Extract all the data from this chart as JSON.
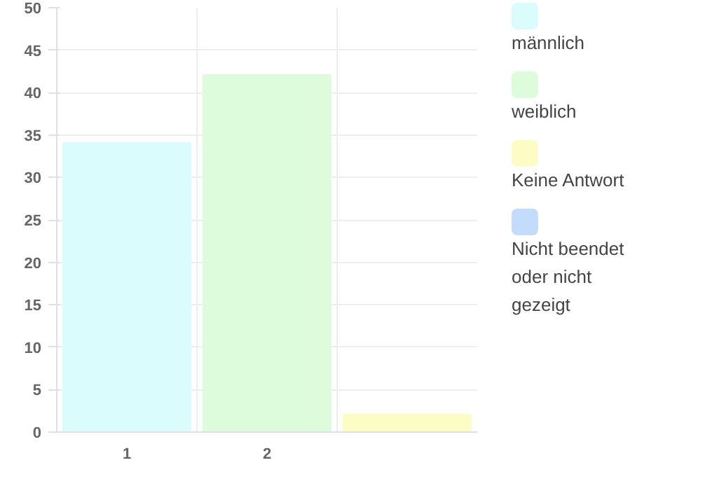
{
  "chart_data": {
    "type": "bar",
    "categories": [
      "1",
      "2",
      null
    ],
    "series": [
      {
        "name": "männlich",
        "color": "#dafcfc",
        "values": [
          34,
          null,
          null
        ]
      },
      {
        "name": "weiblich",
        "color": "#dcfcdc",
        "values": [
          null,
          42,
          null
        ]
      },
      {
        "name": "Keine Antwort",
        "color": "#fcfcc4",
        "values": [
          null,
          null,
          2
        ]
      },
      {
        "name": "Nicht beendet oder nicht gezeigt",
        "color": "#c4dcfc",
        "values": [
          null,
          null,
          null
        ]
      }
    ],
    "stacked": true,
    "ylim": [
      0,
      50
    ],
    "yticks": [
      0,
      5,
      10,
      15,
      20,
      25,
      30,
      35,
      40,
      45,
      50
    ],
    "grid": true,
    "legend": "right"
  }
}
